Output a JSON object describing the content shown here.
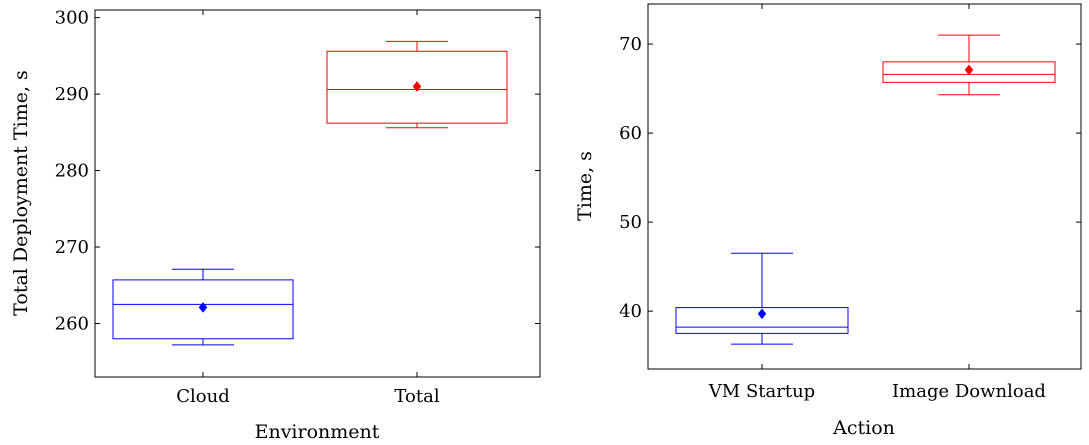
{
  "chart_data": [
    {
      "type": "box",
      "xlabel": "Environment",
      "ylabel": "Total Deployment Time, s",
      "ylim": [
        253,
        301
      ],
      "yticks": [
        260,
        270,
        280,
        290,
        300
      ],
      "categories": [
        "Cloud",
        "Total"
      ],
      "boxes": [
        {
          "category": "Cloud",
          "color": "#0000ff",
          "whisker_low": 257.2,
          "q1": 258.0,
          "median": 262.5,
          "q3": 265.7,
          "whisker_high": 267.1,
          "mean": 262.1
        },
        {
          "category": "Total",
          "color": "#ff0000",
          "whisker_low": 285.6,
          "q1": 286.2,
          "median": 290.6,
          "q3": 295.6,
          "whisker_high": 296.9,
          "mean": 291.0
        }
      ],
      "grid": false
    },
    {
      "type": "box",
      "xlabel": "Action",
      "ylabel": "Time, s",
      "ylim": [
        33.5,
        74.5
      ],
      "yticks": [
        40,
        50,
        60,
        70
      ],
      "categories": [
        "VM Startup",
        "Image Download"
      ],
      "boxes": [
        {
          "category": "VM Startup",
          "color": "#0000ff",
          "whisker_low": 36.3,
          "q1": 37.5,
          "median": 38.2,
          "q3": 40.4,
          "whisker_high": 46.5,
          "mean": 39.7
        },
        {
          "category": "Image Download",
          "color": "#ff0000",
          "whisker_low": 64.3,
          "q1": 65.7,
          "median": 66.6,
          "q3": 68.0,
          "whisker_high": 71.0,
          "mean": 67.1
        }
      ],
      "grid": false
    }
  ]
}
